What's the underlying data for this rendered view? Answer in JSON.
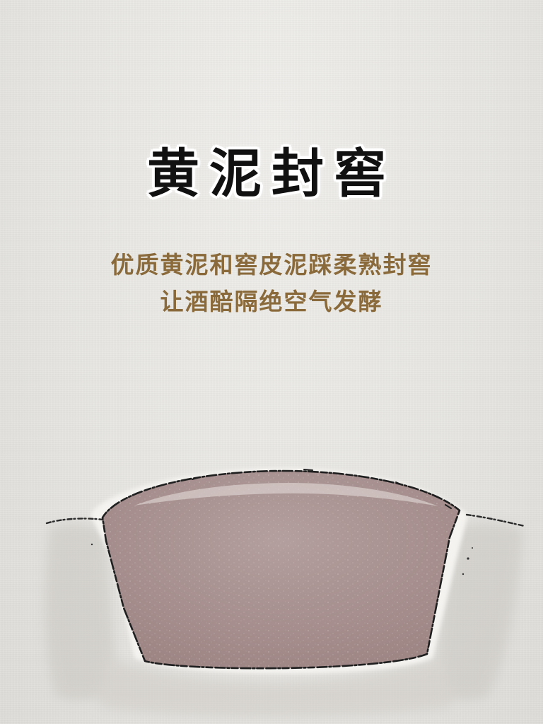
{
  "title": "黄泥封窖",
  "subtitle_lines": [
    "优质黄泥和窖皮泥踩柔熟封窖",
    "让酒醅隔绝空气发酵"
  ],
  "colors": {
    "background": "#e9e8e5",
    "title": "#111111",
    "subtitle": "#8a6a3a",
    "mud": "#a79090",
    "outline": "#222222"
  },
  "illustration": "sealed-cellar-mud-mound"
}
